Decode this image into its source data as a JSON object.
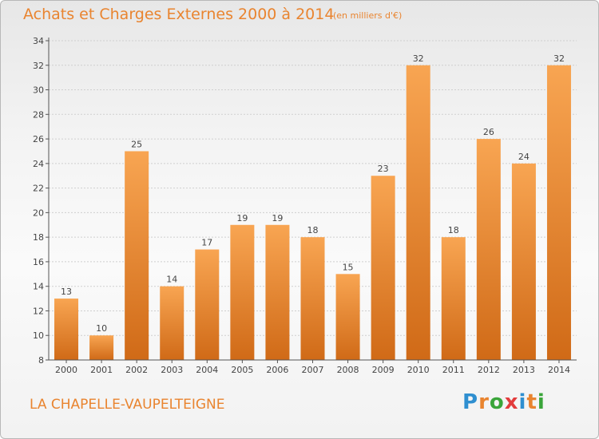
{
  "title": "Achats et Charges Externes 2000 à 2014",
  "subtitle": "(en milliers d'€)",
  "commune": "LA CHAPELLE-VAUPELTEIGNE",
  "logo": {
    "letters": [
      "P",
      "r",
      "o",
      "x",
      "i",
      "t",
      "i"
    ],
    "colors": [
      "#2f8fd0",
      "#e9842f",
      "#3aa53a",
      "#e23c3c",
      "#2f8fd0",
      "#e9842f",
      "#3aa53a"
    ]
  },
  "colors": {
    "bar_top": "#f8a552",
    "bar_bottom": "#d06a17",
    "axis": "#555555",
    "grid": "#cfcfcf",
    "text": "#444444"
  },
  "chart_data": {
    "type": "bar",
    "title": "Achats et Charges Externes 2000 à 2014",
    "xlabel": "",
    "ylabel": "",
    "categories": [
      "2000",
      "2001",
      "2002",
      "2003",
      "2004",
      "2005",
      "2006",
      "2007",
      "2008",
      "2009",
      "2010",
      "2011",
      "2012",
      "2013",
      "2014"
    ],
    "values": [
      13,
      10,
      25,
      14,
      17,
      19,
      19,
      18,
      15,
      23,
      32,
      18,
      26,
      24,
      32
    ],
    "ylim": [
      8,
      34
    ],
    "yticks": [
      8,
      10,
      12,
      14,
      16,
      18,
      20,
      22,
      24,
      26,
      28,
      30,
      32,
      34
    ],
    "grid": true
  }
}
